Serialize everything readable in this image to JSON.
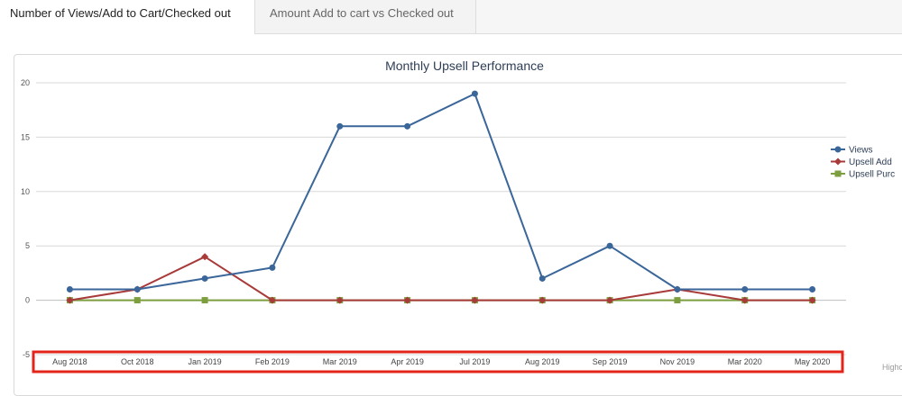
{
  "tabs": [
    {
      "label": "Number of Views/Add to Cart/Checked out",
      "active": true
    },
    {
      "label": "Amount Add to cart vs Checked out",
      "active": false
    }
  ],
  "credit": "Highc",
  "chart_data": {
    "type": "line",
    "title": "Monthly Upsell Performance",
    "xlabel": "",
    "ylabel": "",
    "categories": [
      "Aug 2018",
      "Oct 2018",
      "Jan 2019",
      "Feb 2019",
      "Mar 2019",
      "Apr 2019",
      "Jul 2019",
      "Aug 2019",
      "Sep 2019",
      "Nov 2019",
      "Mar 2020",
      "May 2020"
    ],
    "ylim": [
      -5,
      20
    ],
    "yticks": [
      20,
      15,
      10,
      5,
      0,
      -5
    ],
    "grid": true,
    "legend_position": "right",
    "series": [
      {
        "name": "Views",
        "color": "#3a6699",
        "marker": "circle",
        "values": [
          1,
          1,
          2,
          3,
          16,
          16,
          19,
          2,
          5,
          1,
          1,
          1
        ]
      },
      {
        "name": "Upsell Add",
        "color": "#a83a3a",
        "marker": "diamond",
        "values": [
          0,
          1,
          4,
          0,
          0,
          0,
          0,
          0,
          0,
          1,
          0,
          0
        ]
      },
      {
        "name": "Upsell Purc",
        "color": "#7c9e3e",
        "marker": "square",
        "values": [
          0,
          0,
          0,
          0,
          0,
          0,
          0,
          0,
          0,
          0,
          0,
          0
        ]
      }
    ],
    "highlight_color": "#e3241b"
  }
}
